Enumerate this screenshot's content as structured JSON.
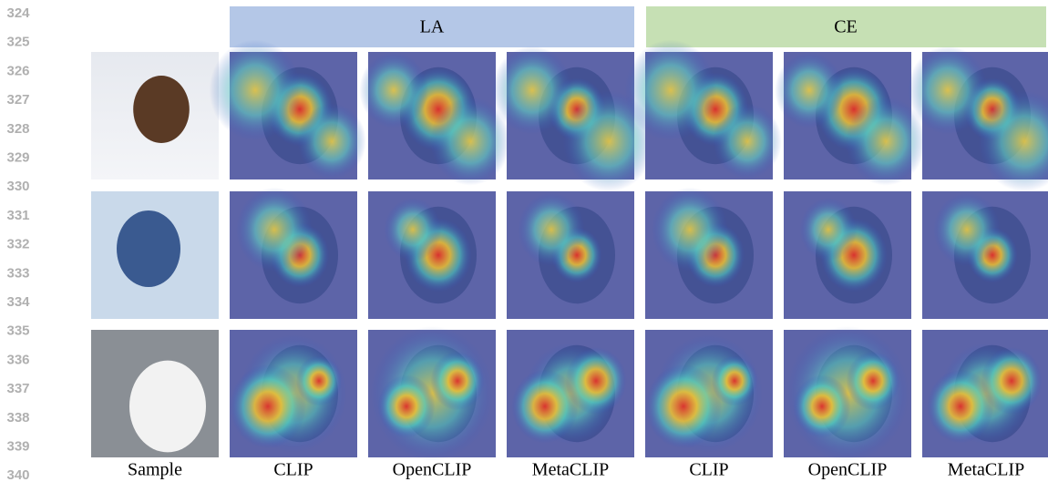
{
  "line_numbers": [
    324,
    325,
    326,
    327,
    328,
    329,
    330,
    331,
    332,
    333,
    334,
    335,
    336,
    337,
    338,
    339,
    340
  ],
  "group_headers": [
    "LA",
    "CE"
  ],
  "column_labels": [
    "Sample",
    "CLIP",
    "OpenCLIP",
    "MetaCLIP",
    "CLIP",
    "OpenCLIP",
    "MetaCLIP"
  ]
}
